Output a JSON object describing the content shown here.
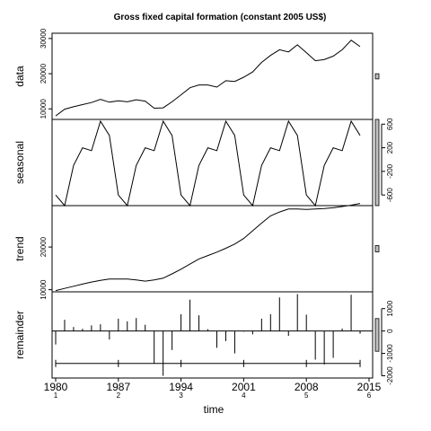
{
  "chart_data": {
    "type": "line",
    "title": "Gross fixed capital formation (constant 2005 US$)",
    "xlabel": "time",
    "x_range": [
      1980,
      2015
    ],
    "x_ticks": [
      1980,
      1987,
      1994,
      2001,
      2008,
      2015
    ],
    "cycle_labels": [
      "1",
      "2",
      "3",
      "4",
      "5",
      "6"
    ],
    "panels": [
      {
        "name": "data",
        "ylim": [
          7000,
          31500
        ],
        "ticks": [
          10000,
          20000,
          30000
        ],
        "tick_side": "left",
        "values": [
          [
            1980,
            8000
          ],
          [
            1981,
            9900
          ],
          [
            1982,
            10600
          ],
          [
            1983,
            11200
          ],
          [
            1984,
            11800
          ],
          [
            1985,
            12700
          ],
          [
            1986,
            11900
          ],
          [
            1987,
            12300
          ],
          [
            1988,
            12000
          ],
          [
            1989,
            12600
          ],
          [
            1990,
            12200
          ],
          [
            1991,
            10200
          ],
          [
            1992,
            10300
          ],
          [
            1993,
            12000
          ],
          [
            1994,
            14000
          ],
          [
            1995,
            16000
          ],
          [
            1996,
            16800
          ],
          [
            1997,
            16800
          ],
          [
            1998,
            16200
          ],
          [
            1999,
            18000
          ],
          [
            2000,
            17800
          ],
          [
            2001,
            19000
          ],
          [
            2002,
            20500
          ],
          [
            2003,
            23200
          ],
          [
            2004,
            25200
          ],
          [
            2005,
            26800
          ],
          [
            2006,
            26200
          ],
          [
            2007,
            28200
          ],
          [
            2008,
            26000
          ],
          [
            2009,
            23700
          ],
          [
            2010,
            24000
          ],
          [
            2011,
            25000
          ],
          [
            2012,
            26800
          ],
          [
            2013,
            29500
          ],
          [
            2014,
            27700
          ]
        ]
      },
      {
        "name": "seasonal",
        "ylim": [
          -780,
          680
        ],
        "ticks": [
          -600,
          -200,
          200,
          600
        ],
        "tick_side": "right",
        "values": [
          [
            1980,
            -600
          ],
          [
            1981,
            -780
          ],
          [
            1982,
            -100
          ],
          [
            1983,
            200
          ],
          [
            1984,
            150
          ],
          [
            1985,
            650
          ],
          [
            1986,
            410
          ],
          [
            1987,
            -600
          ],
          [
            1988,
            -780
          ],
          [
            1989,
            -100
          ],
          [
            1990,
            200
          ],
          [
            1991,
            150
          ],
          [
            1992,
            650
          ],
          [
            1993,
            410
          ],
          [
            1994,
            -600
          ],
          [
            1995,
            -780
          ],
          [
            1996,
            -100
          ],
          [
            1997,
            200
          ],
          [
            1998,
            150
          ],
          [
            1999,
            650
          ],
          [
            2000,
            410
          ],
          [
            2001,
            -600
          ],
          [
            2002,
            -780
          ],
          [
            2003,
            -100
          ],
          [
            2004,
            200
          ],
          [
            2005,
            150
          ],
          [
            2006,
            650
          ],
          [
            2007,
            410
          ],
          [
            2008,
            -600
          ],
          [
            2009,
            -780
          ],
          [
            2010,
            -100
          ],
          [
            2011,
            200
          ],
          [
            2012,
            150
          ],
          [
            2013,
            650
          ],
          [
            2014,
            410
          ]
        ]
      },
      {
        "name": "trend",
        "ylim": [
          9500,
          29700
        ],
        "ticks": [
          10000,
          20000
        ],
        "tick_side": "left",
        "values": [
          [
            1980,
            9800
          ],
          [
            1981,
            10300
          ],
          [
            1982,
            10800
          ],
          [
            1983,
            11300
          ],
          [
            1984,
            11800
          ],
          [
            1985,
            12200
          ],
          [
            1986,
            12500
          ],
          [
            1987,
            12500
          ],
          [
            1988,
            12500
          ],
          [
            1989,
            12300
          ],
          [
            1990,
            12000
          ],
          [
            1991,
            12300
          ],
          [
            1992,
            12700
          ],
          [
            1993,
            13700
          ],
          [
            1994,
            14800
          ],
          [
            1995,
            16000
          ],
          [
            1996,
            17200
          ],
          [
            1997,
            18000
          ],
          [
            1998,
            18800
          ],
          [
            1999,
            19700
          ],
          [
            2000,
            20700
          ],
          [
            2001,
            22000
          ],
          [
            2002,
            23800
          ],
          [
            2003,
            25600
          ],
          [
            2004,
            27300
          ],
          [
            2005,
            28200
          ],
          [
            2006,
            28900
          ],
          [
            2007,
            28900
          ],
          [
            2008,
            28800
          ],
          [
            2009,
            28900
          ],
          [
            2010,
            29000
          ],
          [
            2011,
            29200
          ],
          [
            2012,
            29500
          ],
          [
            2013,
            29800
          ],
          [
            2014,
            30200
          ]
        ]
      },
      {
        "name": "remainder",
        "ylim": [
          -2100,
          1750
        ],
        "ticks": [
          -2000,
          -1000,
          0,
          1000
        ],
        "tick_side": "right",
        "values": [
          [
            1980,
            -600
          ],
          [
            1981,
            500
          ],
          [
            1982,
            180
          ],
          [
            1983,
            100
          ],
          [
            1984,
            250
          ],
          [
            1985,
            300
          ],
          [
            1986,
            -380
          ],
          [
            1987,
            550
          ],
          [
            1988,
            430
          ],
          [
            1989,
            580
          ],
          [
            1990,
            280
          ],
          [
            1991,
            -1450
          ],
          [
            1992,
            -2000
          ],
          [
            1993,
            -850
          ],
          [
            1994,
            750
          ],
          [
            1995,
            1400
          ],
          [
            1996,
            700
          ],
          [
            1997,
            80
          ],
          [
            1998,
            -750
          ],
          [
            1999,
            -450
          ],
          [
            2000,
            -1000
          ],
          [
            2001,
            -30
          ],
          [
            2002,
            -150
          ],
          [
            2003,
            550
          ],
          [
            2004,
            750
          ],
          [
            2005,
            1500
          ],
          [
            2006,
            -220
          ],
          [
            2007,
            1650
          ],
          [
            2008,
            730
          ],
          [
            2009,
            -1280
          ],
          [
            2010,
            -1490
          ],
          [
            2011,
            -1200
          ],
          [
            2012,
            110
          ],
          [
            2013,
            1620
          ],
          [
            2014,
            -120
          ]
        ]
      }
    ]
  }
}
